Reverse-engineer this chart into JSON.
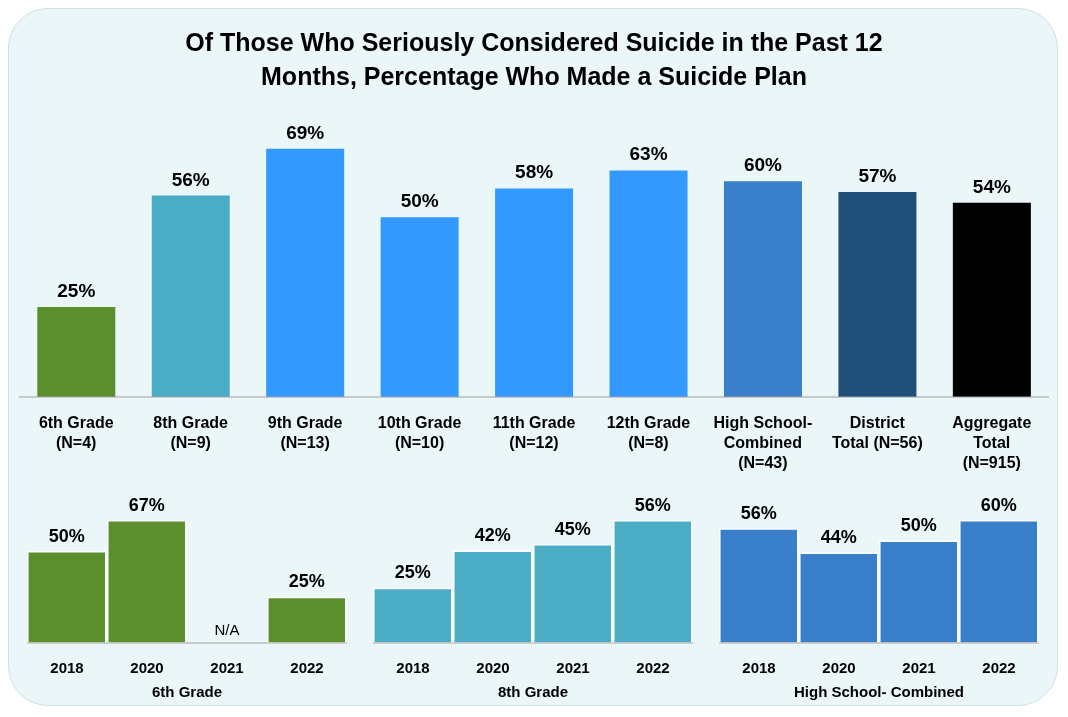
{
  "chart_data": [
    {
      "type": "bar",
      "title": "Of Those Who Seriously Considered Suicide in the Past 12 Months, Percentage Who Made a Suicide Plan",
      "categories": [
        "6th Grade (N=4)",
        "8th Grade (N=9)",
        "9th Grade (N=13)",
        "10th Grade (N=10)",
        "11th Grade (N=12)",
        "12th Grade (N=8)",
        "High School-Combined (N=43)",
        "District Total (N=56)",
        "Aggregate Total (N=915)"
      ],
      "values": [
        25,
        56,
        69,
        50,
        58,
        63,
        60,
        57,
        54
      ],
      "value_labels": [
        "25%",
        "56%",
        "69%",
        "50%",
        "58%",
        "63%",
        "60%",
        "57%",
        "54%"
      ],
      "colors": [
        "#5b8f2e",
        "#4bacc6",
        "#3399ff",
        "#3399ff",
        "#3399ff",
        "#3399ff",
        "#3a7fc9",
        "#1f4e79",
        "#000000"
      ]
    },
    {
      "type": "bar",
      "xlabel": "6th Grade",
      "categories": [
        "2018",
        "2020",
        "2021",
        "2022"
      ],
      "values": [
        50,
        67,
        null,
        25
      ],
      "value_labels": [
        "50%",
        "67%",
        "N/A",
        "25%"
      ],
      "color": "#5b8f2e"
    },
    {
      "type": "bar",
      "xlabel": "8th Grade",
      "categories": [
        "2018",
        "2020",
        "2021",
        "2022"
      ],
      "values": [
        25,
        42,
        45,
        56
      ],
      "value_labels": [
        "25%",
        "42%",
        "45%",
        "56%"
      ],
      "color": "#4bacc6"
    },
    {
      "type": "bar",
      "xlabel": "High School- Combined",
      "categories": [
        "2018",
        "2020",
        "2021",
        "2022"
      ],
      "values": [
        56,
        44,
        50,
        60
      ],
      "value_labels": [
        "56%",
        "44%",
        "50%",
        "60%"
      ],
      "color": "#3a7fc9"
    }
  ]
}
